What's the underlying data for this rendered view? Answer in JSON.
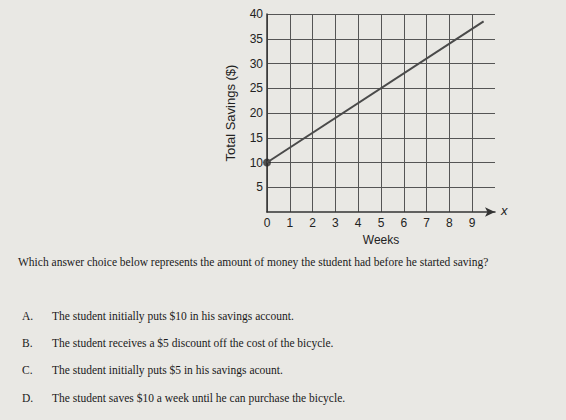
{
  "chart_data": {
    "type": "line",
    "y_label": "Total Savings ($)",
    "x_label": "Weeks",
    "annotations": [
      "x"
    ],
    "xlim": [
      0,
      10
    ],
    "xticks": [
      0,
      1,
      2,
      3,
      4,
      5,
      6,
      7,
      8,
      9
    ],
    "ylim": [
      0,
      40
    ],
    "yticks": [
      5,
      10,
      15,
      20,
      25,
      30,
      35,
      40
    ],
    "grid": true,
    "series": [
      {
        "type": "line",
        "x": [
          0,
          9.5
        ],
        "values": [
          10,
          38.5
        ],
        "marker": "none",
        "color": "#4a4a4a"
      },
      {
        "type": "scatter",
        "x": [
          0
        ],
        "values": [
          10
        ],
        "marker": "circle",
        "color": "#2a2a2a"
      }
    ]
  },
  "question": "Which answer choice below represents the amount of money the student had before he started saving?",
  "choices": [
    {
      "letter": "A.",
      "text": "The student initially puts $10 in his savings account."
    },
    {
      "letter": "B.",
      "text": "The student receives a $5 discount off the cost of the bicycle."
    },
    {
      "letter": "C.",
      "text": "The student initially puts $5 in his savings acount."
    },
    {
      "letter": "D.",
      "text": "The student saves $10 a week until he can purchase the bicycle."
    }
  ]
}
